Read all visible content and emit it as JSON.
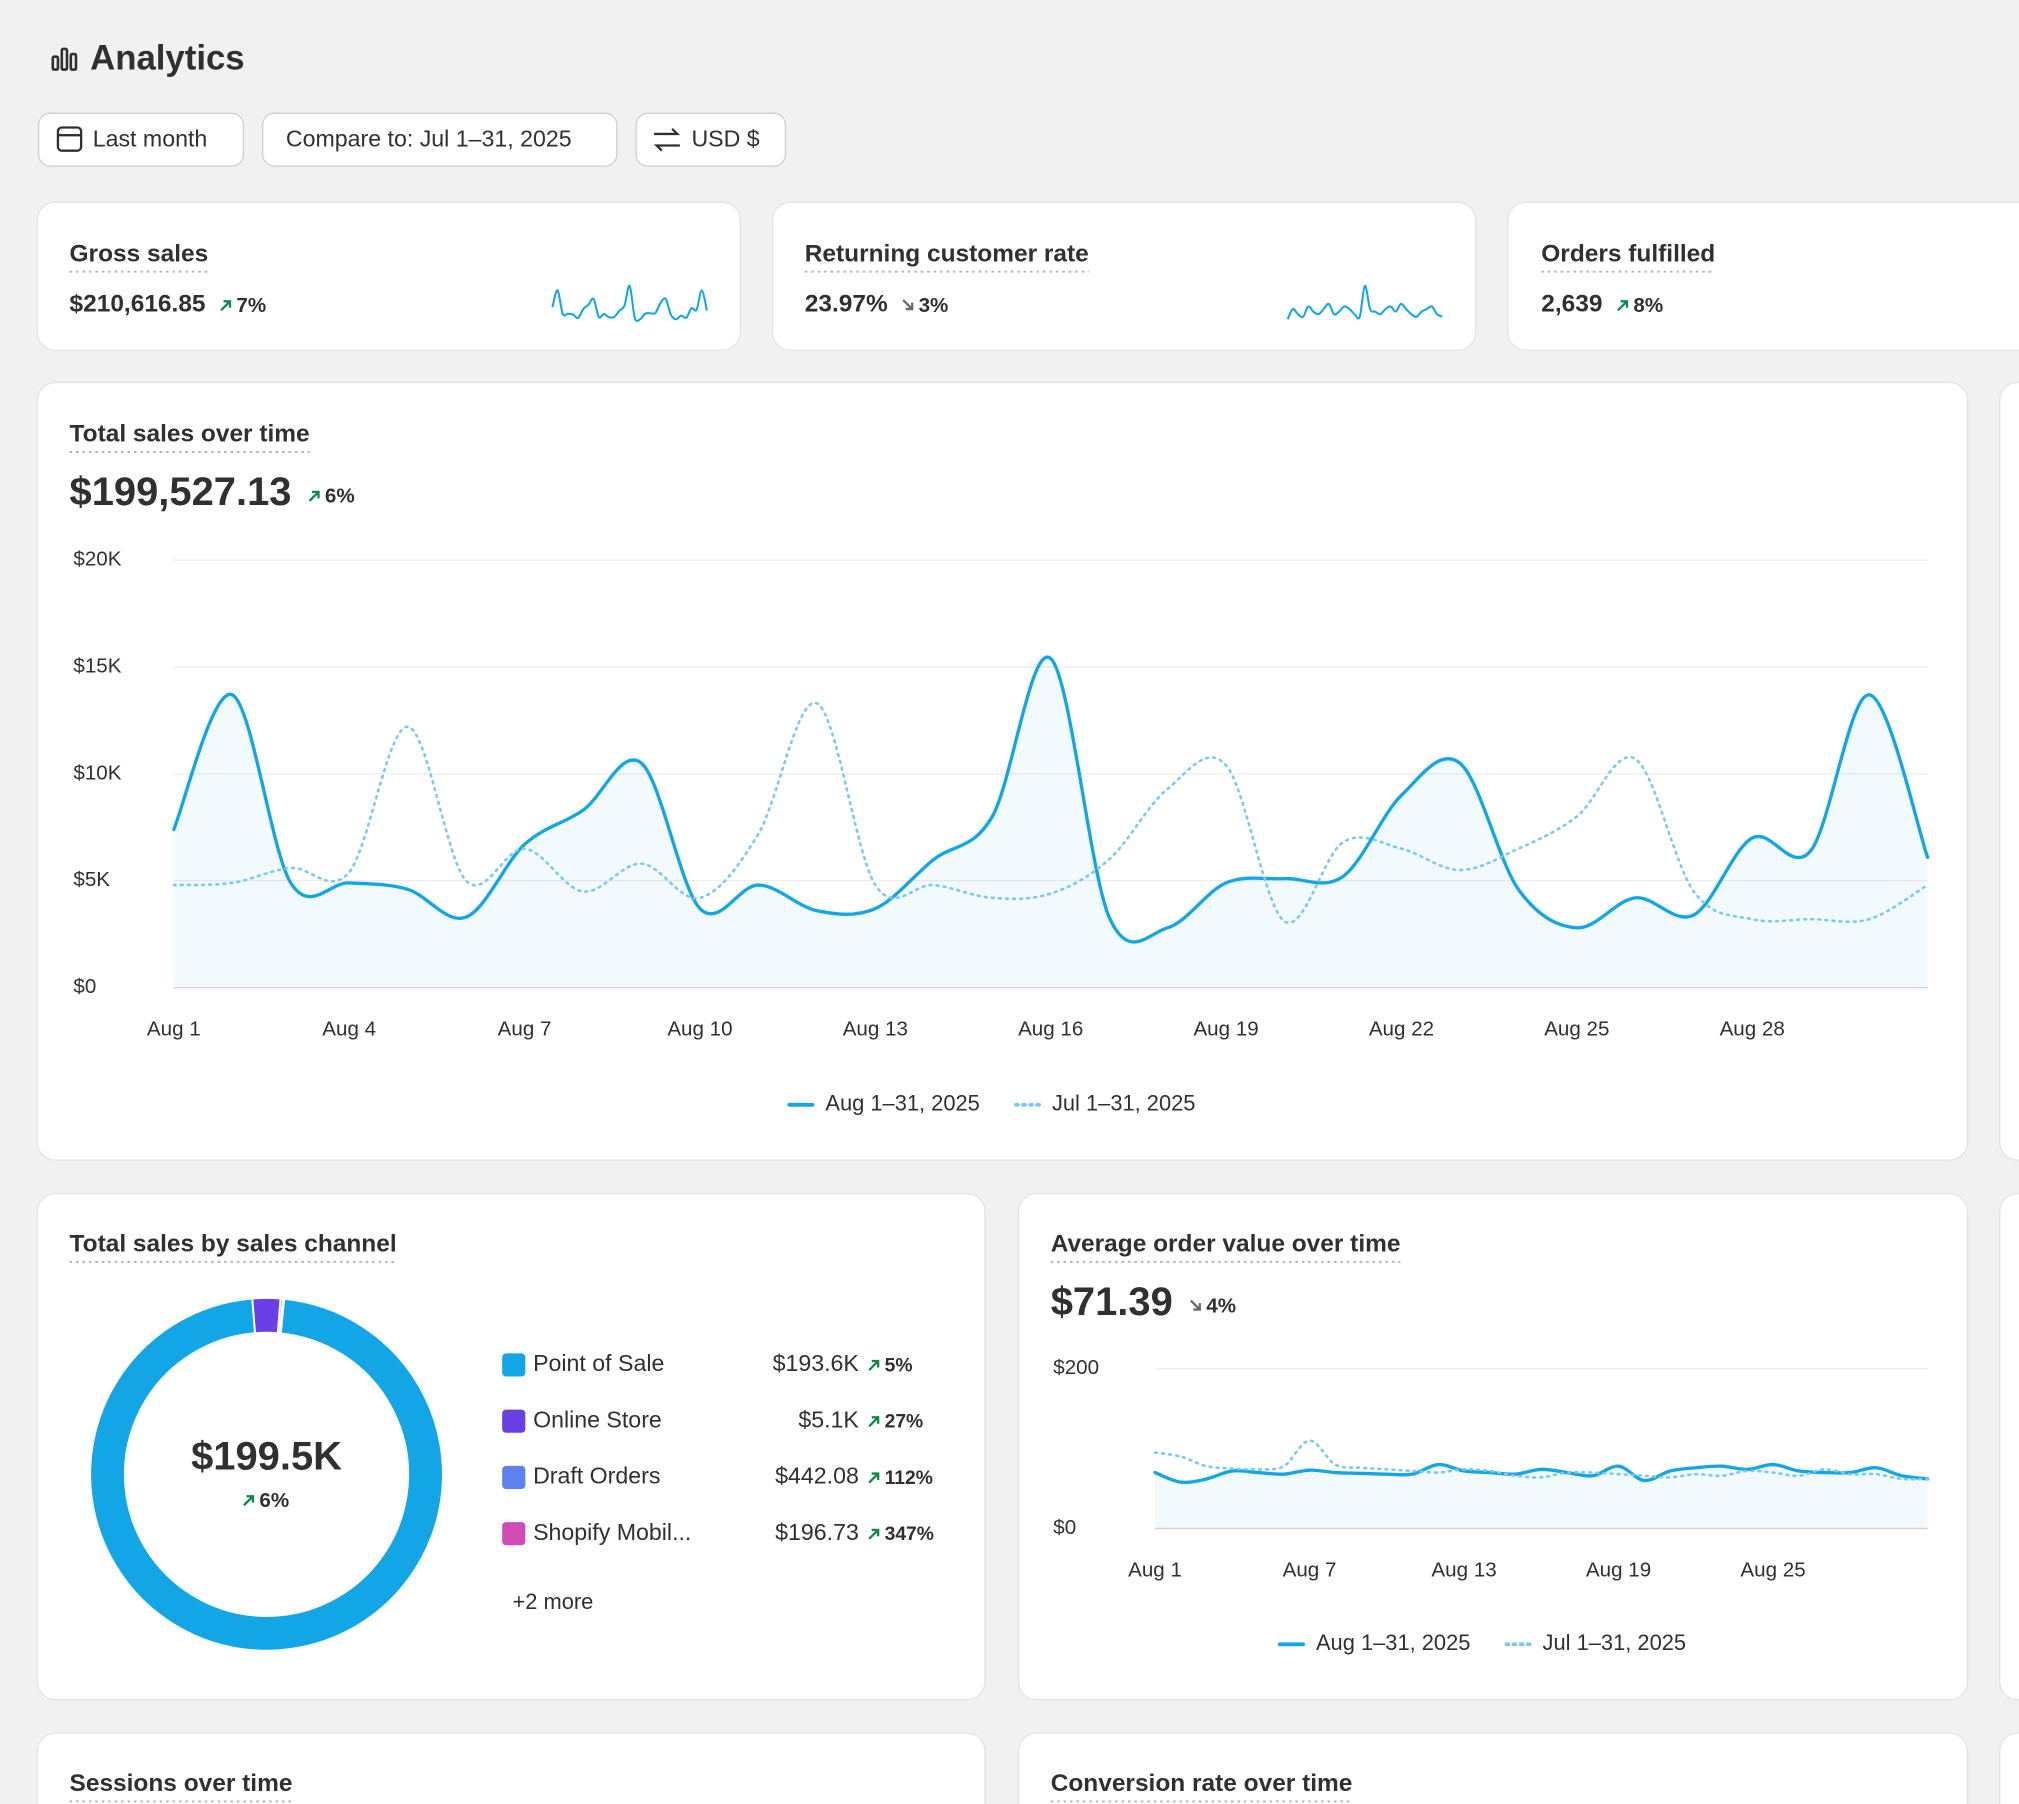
{
  "header": {
    "title": "Analytics"
  },
  "filters": [
    "Last month",
    "Compare to: Jul 1–31, 2025",
    "USD $"
  ],
  "kpis": [
    {
      "title": "Gross sales",
      "value": "$210,616.85",
      "change": "7%",
      "trend": "up",
      "sparkline": [
        7.4,
        13.7,
        4.9,
        4.9,
        4.6,
        3.3,
        6.7,
        8.3,
        10.5,
        3.7,
        4.8,
        3.6,
        3.7,
        6,
        8,
        15.4,
        3.3,
        2.8,
        4.9,
        5.1,
        5.2,
        9,
        10.5,
        4.6,
        2.8,
        4.2,
        3.4,
        7,
        6.4,
        13.7,
        6.1
      ]
    },
    {
      "title": "Returning customer rate",
      "value": "23.97%",
      "change": "3%",
      "trend": "down",
      "sparkline": [
        20,
        24,
        22,
        21,
        25,
        23,
        22,
        24,
        26,
        22,
        23,
        25,
        24,
        22,
        21,
        33,
        24,
        23,
        22,
        24,
        25,
        23,
        26,
        24,
        22,
        21,
        23,
        24,
        25,
        22,
        21
      ]
    },
    {
      "title": "Orders fulfilled",
      "value": "2,639",
      "change": "8%",
      "trend": "up"
    }
  ],
  "chart_data": [
    {
      "type": "line",
      "title": "Total sales over time",
      "value": "$199,527.13",
      "change": "6%",
      "trend": "up",
      "categories": [
        "Aug 1",
        null,
        null,
        "Aug 4",
        null,
        null,
        "Aug 7",
        null,
        null,
        "Aug 10",
        null,
        null,
        "Aug 13",
        null,
        null,
        "Aug 16",
        null,
        null,
        "Aug 19",
        null,
        null,
        "Aug 22",
        null,
        null,
        "Aug 25",
        null,
        null,
        "Aug 28",
        null,
        null,
        null
      ],
      "ylim": [
        0,
        20000
      ],
      "yticks": [
        {
          "value": 0,
          "label": "$0"
        },
        {
          "value": 5000,
          "label": "$5K"
        },
        {
          "value": 10000,
          "label": "$10K"
        },
        {
          "value": 15000,
          "label": "$15K"
        },
        {
          "value": 20000,
          "label": "$20K"
        }
      ],
      "grid": true,
      "series": [
        {
          "name": "Aug 1–31, 2025",
          "color": "#13a6e6",
          "style": "solid",
          "values": [
            7400,
            13700,
            4900,
            4900,
            4600,
            3300,
            6700,
            8300,
            10500,
            3700,
            4800,
            3600,
            3700,
            6000,
            8000,
            15400,
            3300,
            2800,
            4900,
            5100,
            5200,
            9000,
            10500,
            4600,
            2800,
            4200,
            3400,
            7000,
            6400,
            13700,
            6100
          ]
        },
        {
          "name": "Jul 1–31, 2025",
          "color": "#7cc8ee",
          "style": "dotted",
          "values": [
            4800,
            4900,
            5600,
            5400,
            12200,
            5000,
            6500,
            4500,
            5800,
            4200,
            7200,
            13300,
            4800,
            4800,
            4200,
            4400,
            6000,
            9300,
            10400,
            3100,
            6800,
            6500,
            5500,
            6500,
            8000,
            10700,
            4500,
            3200,
            3200,
            3200,
            4800
          ]
        }
      ]
    },
    {
      "type": "pie",
      "title": "Total sales by sales channel",
      "center_label": "$199.5K",
      "center_change": "6%",
      "center_trend": "up",
      "categories": [
        "Point of Sale",
        "Online Store",
        "Draft Orders",
        "Shopify Mobil..."
      ],
      "values": [
        193600,
        5100,
        442.08,
        196.73
      ],
      "value_labels": [
        "$193.6K",
        "$5.1K",
        "$442.08",
        "$196.73"
      ],
      "changes": [
        "5%",
        "27%",
        "112%",
        "347%"
      ],
      "colors": [
        "#13a6e6",
        "#6b3fe6",
        "#5b82ee",
        "#d14cb8"
      ],
      "more_label": "+2 more"
    },
    {
      "type": "line",
      "title": "Average order value over time",
      "value": "$71.39",
      "change": "4%",
      "trend": "down",
      "categories": [
        "Aug 1",
        null,
        null,
        null,
        null,
        null,
        "Aug 7",
        null,
        null,
        null,
        null,
        null,
        "Aug 13",
        null,
        null,
        null,
        null,
        null,
        "Aug 19",
        null,
        null,
        null,
        null,
        null,
        "Aug 25",
        null,
        null,
        null,
        null,
        null,
        null
      ],
      "ylim": [
        0,
        200
      ],
      "yticks": [
        {
          "value": 0,
          "label": "$0"
        },
        {
          "value": 200,
          "label": "$200"
        }
      ],
      "grid": true,
      "series": [
        {
          "name": "Aug 1–31, 2025",
          "color": "#13a6e6",
          "style": "solid",
          "values": [
            70,
            58,
            62,
            72,
            70,
            68,
            73,
            70,
            69,
            68,
            68,
            80,
            72,
            70,
            68,
            74,
            70,
            66,
            78,
            60,
            72,
            76,
            78,
            74,
            80,
            72,
            70,
            70,
            76,
            66,
            62
          ]
        },
        {
          "name": "Jul 1–31, 2025",
          "color": "#7cc8ee",
          "style": "dotted",
          "values": [
            95,
            90,
            78,
            75,
            74,
            78,
            110,
            80,
            76,
            74,
            72,
            70,
            74,
            72,
            66,
            64,
            70,
            70,
            68,
            66,
            64,
            68,
            66,
            72,
            70,
            66,
            74,
            68,
            68,
            62,
            62
          ]
        }
      ]
    }
  ],
  "sections": [
    {
      "title": "Sessions over time"
    },
    {
      "title": "Conversion rate over time"
    }
  ]
}
